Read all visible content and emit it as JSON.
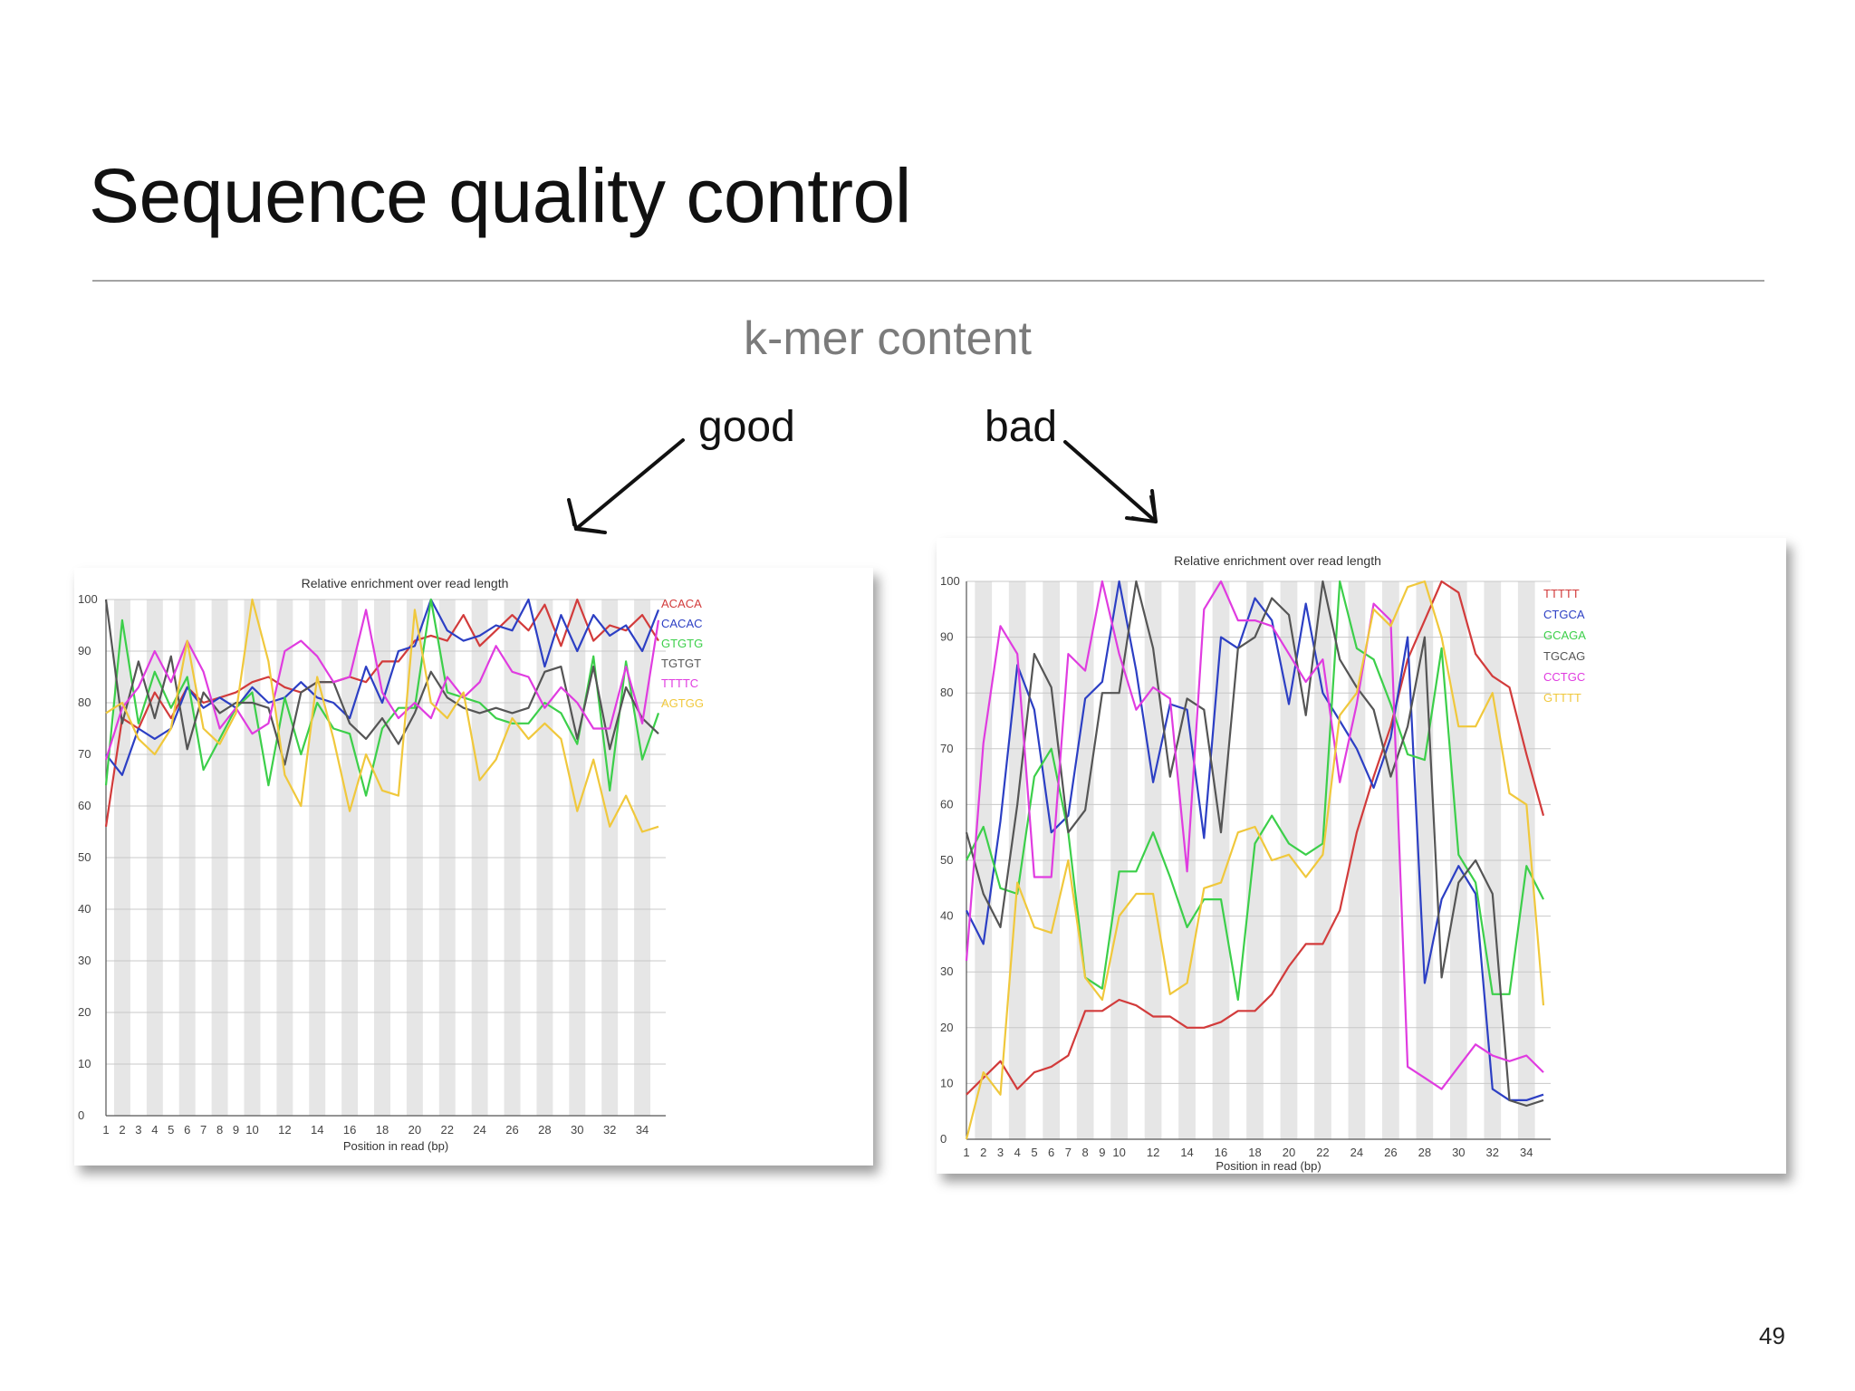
{
  "slide": {
    "title": "Sequence quality control",
    "subtitle": "k-mer content",
    "label_good": "good",
    "label_bad": "bad",
    "page_number": "49"
  },
  "chart_data": [
    {
      "type": "line",
      "panel": "good",
      "title": "Relative enrichment over read length",
      "xlabel": "Position in read (bp)",
      "ylabel": "",
      "x_ticks": [
        "1",
        "2",
        "3",
        "4",
        "5",
        "6",
        "7",
        "8",
        "9",
        "10",
        "12",
        "14",
        "16",
        "18",
        "20",
        "22",
        "24",
        "26",
        "28",
        "30",
        "32",
        "34"
      ],
      "xlim": [
        1,
        35
      ],
      "ylim": [
        0,
        100
      ],
      "y_ticks": [
        0,
        10,
        20,
        30,
        40,
        50,
        60,
        70,
        80,
        90,
        100
      ],
      "grid": true,
      "legend_position": "right",
      "series": [
        {
          "name": "ACACA",
          "color": "#d23b3b",
          "x": [
            1,
            2,
            3,
            4,
            5,
            6,
            7,
            8,
            9,
            10,
            11,
            12,
            13,
            14,
            15,
            16,
            17,
            18,
            19,
            20,
            21,
            22,
            23,
            24,
            25,
            26,
            27,
            28,
            29,
            30,
            31,
            32,
            33,
            34,
            35
          ],
          "values": [
            56,
            77,
            75,
            82,
            77,
            83,
            80,
            81,
            82,
            84,
            85,
            83,
            82,
            84,
            84,
            85,
            84,
            88,
            88,
            92,
            93,
            92,
            97,
            91,
            94,
            97,
            94,
            99,
            91,
            100,
            92,
            95,
            94,
            97,
            92
          ]
        },
        {
          "name": "CACAC",
          "color": "#2c3fc4",
          "x": [
            1,
            2,
            3,
            4,
            5,
            6,
            7,
            8,
            9,
            10,
            11,
            12,
            13,
            14,
            15,
            16,
            17,
            18,
            19,
            20,
            21,
            22,
            23,
            24,
            25,
            26,
            27,
            28,
            29,
            30,
            31,
            32,
            33,
            34,
            35
          ],
          "values": [
            70,
            66,
            75,
            73,
            75,
            83,
            79,
            81,
            79,
            83,
            80,
            81,
            84,
            81,
            80,
            77,
            87,
            80,
            90,
            91,
            100,
            94,
            92,
            93,
            95,
            94,
            100,
            87,
            97,
            90,
            97,
            93,
            95,
            90,
            98
          ]
        },
        {
          "name": "GTGTG",
          "color": "#3ccf4a",
          "x": [
            1,
            2,
            3,
            4,
            5,
            6,
            7,
            8,
            9,
            10,
            11,
            12,
            13,
            14,
            15,
            16,
            17,
            18,
            19,
            20,
            21,
            22,
            23,
            24,
            25,
            26,
            27,
            28,
            29,
            30,
            31,
            32,
            33,
            34,
            35
          ],
          "values": [
            64,
            96,
            76,
            86,
            79,
            85,
            67,
            73,
            79,
            82,
            64,
            81,
            70,
            80,
            75,
            74,
            62,
            75,
            79,
            79,
            100,
            82,
            81,
            80,
            77,
            76,
            76,
            80,
            78,
            72,
            89,
            63,
            88,
            69,
            78
          ]
        },
        {
          "name": "TGTGT",
          "color": "#555555",
          "x": [
            1,
            2,
            3,
            4,
            5,
            6,
            7,
            8,
            9,
            10,
            11,
            12,
            13,
            14,
            15,
            16,
            17,
            18,
            19,
            20,
            21,
            22,
            23,
            24,
            25,
            26,
            27,
            28,
            29,
            30,
            31,
            32,
            33,
            34,
            35
          ],
          "values": [
            100,
            76,
            88,
            77,
            89,
            71,
            82,
            78,
            80,
            80,
            79,
            68,
            82,
            84,
            84,
            76,
            73,
            77,
            72,
            78,
            86,
            81,
            79,
            78,
            79,
            78,
            79,
            86,
            87,
            73,
            87,
            71,
            83,
            77,
            74
          ]
        },
        {
          "name": "TTTTC",
          "color": "#e03ce0",
          "x": [
            1,
            2,
            3,
            4,
            5,
            6,
            7,
            8,
            9,
            10,
            11,
            12,
            13,
            14,
            15,
            16,
            17,
            18,
            19,
            20,
            21,
            22,
            23,
            24,
            25,
            26,
            27,
            28,
            29,
            30,
            31,
            32,
            33,
            34,
            35
          ],
          "values": [
            69,
            79,
            83,
            90,
            84,
            92,
            86,
            75,
            79,
            74,
            76,
            90,
            92,
            89,
            84,
            85,
            98,
            82,
            77,
            80,
            77,
            85,
            81,
            84,
            91,
            86,
            85,
            79,
            83,
            80,
            75,
            75,
            87,
            76,
            96
          ]
        },
        {
          "name": "AGTGG",
          "color": "#f0c83c",
          "x": [
            1,
            2,
            3,
            4,
            5,
            6,
            7,
            8,
            9,
            10,
            11,
            12,
            13,
            14,
            15,
            16,
            17,
            18,
            19,
            20,
            21,
            22,
            23,
            24,
            25,
            26,
            27,
            28,
            29,
            30,
            31,
            32,
            33,
            34,
            35
          ],
          "values": [
            78,
            80,
            73,
            70,
            75,
            92,
            75,
            72,
            78,
            100,
            88,
            66,
            60,
            85,
            73,
            59,
            70,
            63,
            62,
            98,
            80,
            77,
            82,
            65,
            69,
            77,
            73,
            76,
            73,
            59,
            69,
            56,
            62,
            55,
            56
          ]
        }
      ]
    },
    {
      "type": "line",
      "panel": "bad",
      "title": "Relative enrichment over read length",
      "xlabel": "Position in read (bp)",
      "ylabel": "",
      "x_ticks": [
        "1",
        "2",
        "3",
        "4",
        "5",
        "6",
        "7",
        "8",
        "9",
        "10",
        "12",
        "14",
        "16",
        "18",
        "20",
        "22",
        "24",
        "26",
        "28",
        "30",
        "32",
        "34"
      ],
      "xlim": [
        1,
        35
      ],
      "ylim": [
        0,
        100
      ],
      "y_ticks": [
        0,
        10,
        20,
        30,
        40,
        50,
        60,
        70,
        80,
        90,
        100
      ],
      "grid": true,
      "legend_position": "right",
      "series": [
        {
          "name": "TTTTT",
          "color": "#d23b3b",
          "x": [
            1,
            2,
            3,
            4,
            5,
            6,
            7,
            8,
            9,
            10,
            11,
            12,
            13,
            14,
            15,
            16,
            17,
            18,
            19,
            20,
            21,
            22,
            23,
            24,
            25,
            26,
            27,
            28,
            29,
            30,
            31,
            32,
            33,
            34,
            35
          ],
          "values": [
            8,
            11,
            14,
            9,
            12,
            13,
            15,
            23,
            23,
            25,
            24,
            22,
            22,
            20,
            20,
            21,
            23,
            23,
            26,
            31,
            35,
            35,
            41,
            55,
            65,
            74,
            86,
            93,
            100,
            98,
            87,
            83,
            81,
            69,
            58
          ]
        },
        {
          "name": "CTGCA",
          "color": "#2c3fc4",
          "x": [
            1,
            2,
            3,
            4,
            5,
            6,
            7,
            8,
            9,
            10,
            11,
            12,
            13,
            14,
            15,
            16,
            17,
            18,
            19,
            20,
            21,
            22,
            23,
            24,
            25,
            26,
            27,
            28,
            29,
            30,
            31,
            32,
            33,
            34,
            35
          ],
          "values": [
            41,
            35,
            57,
            85,
            77,
            55,
            58,
            79,
            82,
            100,
            84,
            64,
            78,
            77,
            54,
            90,
            88,
            97,
            93,
            78,
            96,
            80,
            75,
            70,
            63,
            72,
            90,
            28,
            43,
            49,
            44,
            9,
            7,
            7,
            8
          ]
        },
        {
          "name": "GCAGA",
          "color": "#3ccf4a",
          "x": [
            1,
            2,
            3,
            4,
            5,
            6,
            7,
            8,
            9,
            10,
            11,
            12,
            13,
            14,
            15,
            16,
            17,
            18,
            19,
            20,
            21,
            22,
            23,
            24,
            25,
            26,
            27,
            28,
            29,
            30,
            31,
            32,
            33,
            34,
            35
          ],
          "values": [
            50,
            56,
            45,
            44,
            65,
            70,
            55,
            29,
            27,
            48,
            48,
            55,
            47,
            38,
            43,
            43,
            25,
            53,
            58,
            53,
            51,
            53,
            100,
            88,
            86,
            78,
            69,
            68,
            88,
            51,
            46,
            26,
            26,
            49,
            43
          ]
        },
        {
          "name": "TGCAG",
          "color": "#555555",
          "x": [
            1,
            2,
            3,
            4,
            5,
            6,
            7,
            8,
            9,
            10,
            11,
            12,
            13,
            14,
            15,
            16,
            17,
            18,
            19,
            20,
            21,
            22,
            23,
            24,
            25,
            26,
            27,
            28,
            29,
            30,
            31,
            32,
            33,
            34,
            35
          ],
          "values": [
            55,
            44,
            38,
            60,
            87,
            81,
            55,
            59,
            80,
            80,
            100,
            88,
            65,
            79,
            77,
            55,
            88,
            90,
            97,
            94,
            76,
            100,
            86,
            81,
            77,
            65,
            74,
            90,
            29,
            46,
            50,
            44,
            7,
            6,
            7
          ]
        },
        {
          "name": "CCTGC",
          "color": "#e03ce0",
          "x": [
            1,
            2,
            3,
            4,
            5,
            6,
            7,
            8,
            9,
            10,
            11,
            12,
            13,
            14,
            15,
            16,
            17,
            18,
            19,
            20,
            21,
            22,
            23,
            24,
            25,
            26,
            27,
            28,
            29,
            30,
            31,
            32,
            33,
            34,
            35
          ],
          "values": [
            32,
            71,
            92,
            87,
            47,
            47,
            87,
            84,
            100,
            87,
            77,
            81,
            79,
            48,
            95,
            100,
            93,
            93,
            92,
            87,
            82,
            86,
            64,
            78,
            96,
            93,
            13,
            11,
            9,
            13,
            17,
            15,
            14,
            15,
            12
          ]
        },
        {
          "name": "GTTTT",
          "color": "#f0c83c",
          "x": [
            1,
            2,
            3,
            4,
            5,
            6,
            7,
            8,
            9,
            10,
            11,
            12,
            13,
            14,
            15,
            16,
            17,
            18,
            19,
            20,
            21,
            22,
            23,
            24,
            25,
            26,
            27,
            28,
            29,
            30,
            31,
            32,
            33,
            34,
            35
          ],
          "values": [
            0,
            12,
            8,
            46,
            38,
            37,
            50,
            29,
            25,
            40,
            44,
            44,
            26,
            28,
            45,
            46,
            55,
            56,
            50,
            51,
            47,
            51,
            76,
            80,
            95,
            92,
            99,
            100,
            90,
            74,
            74,
            80,
            62,
            60,
            24
          ]
        }
      ]
    }
  ]
}
